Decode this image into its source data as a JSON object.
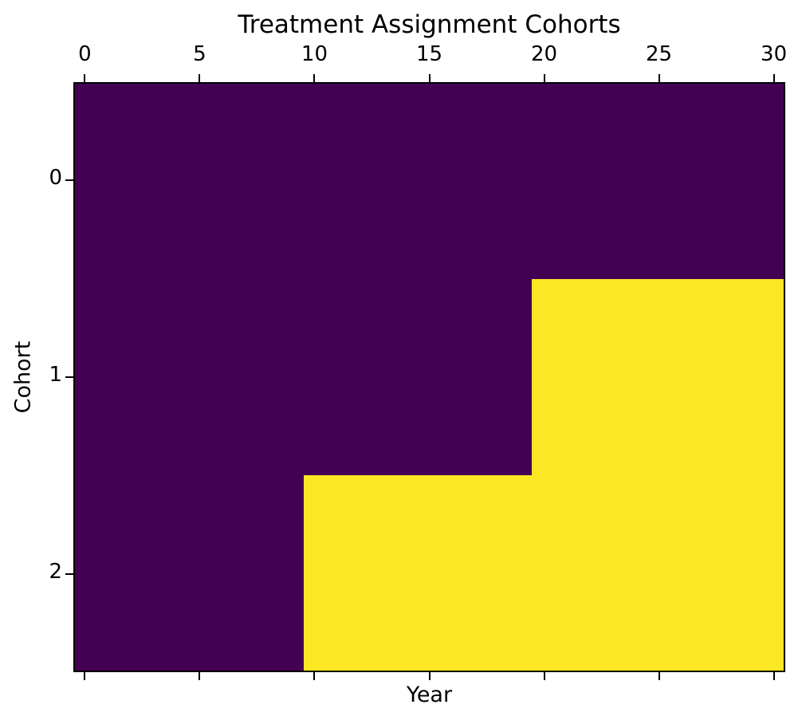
{
  "chart_data": {
    "type": "heatmap",
    "title": "Treatment Assignment Cohorts",
    "xlabel": "Year",
    "ylabel": "Cohort",
    "colormap": "viridis",
    "grid": false,
    "legend": "none",
    "x_tick_position": "top",
    "x_ticks": [
      0,
      5,
      10,
      15,
      20,
      25,
      30
    ],
    "y_ticks": [
      0,
      1,
      2
    ],
    "x_range": [
      -0.5,
      30.5
    ],
    "y_range": [
      -0.5,
      2.5
    ],
    "n_years": 31,
    "colors": {
      "untreated": "#440154",
      "treated": "#FDE725",
      "axis": "#000000",
      "background": "#ffffff"
    },
    "series": [
      {
        "cohort": 0,
        "treatment_start_year": null,
        "values": [
          0,
          0,
          0,
          0,
          0,
          0,
          0,
          0,
          0,
          0,
          0,
          0,
          0,
          0,
          0,
          0,
          0,
          0,
          0,
          0,
          0,
          0,
          0,
          0,
          0,
          0,
          0,
          0,
          0,
          0,
          0
        ]
      },
      {
        "cohort": 1,
        "treatment_start_year": 20,
        "values": [
          0,
          0,
          0,
          0,
          0,
          0,
          0,
          0,
          0,
          0,
          0,
          0,
          0,
          0,
          0,
          0,
          0,
          0,
          0,
          0,
          1,
          1,
          1,
          1,
          1,
          1,
          1,
          1,
          1,
          1,
          1
        ]
      },
      {
        "cohort": 2,
        "treatment_start_year": 10,
        "values": [
          0,
          0,
          0,
          0,
          0,
          0,
          0,
          0,
          0,
          0,
          1,
          1,
          1,
          1,
          1,
          1,
          1,
          1,
          1,
          1,
          1,
          1,
          1,
          1,
          1,
          1,
          1,
          1,
          1,
          1,
          1
        ]
      }
    ]
  }
}
